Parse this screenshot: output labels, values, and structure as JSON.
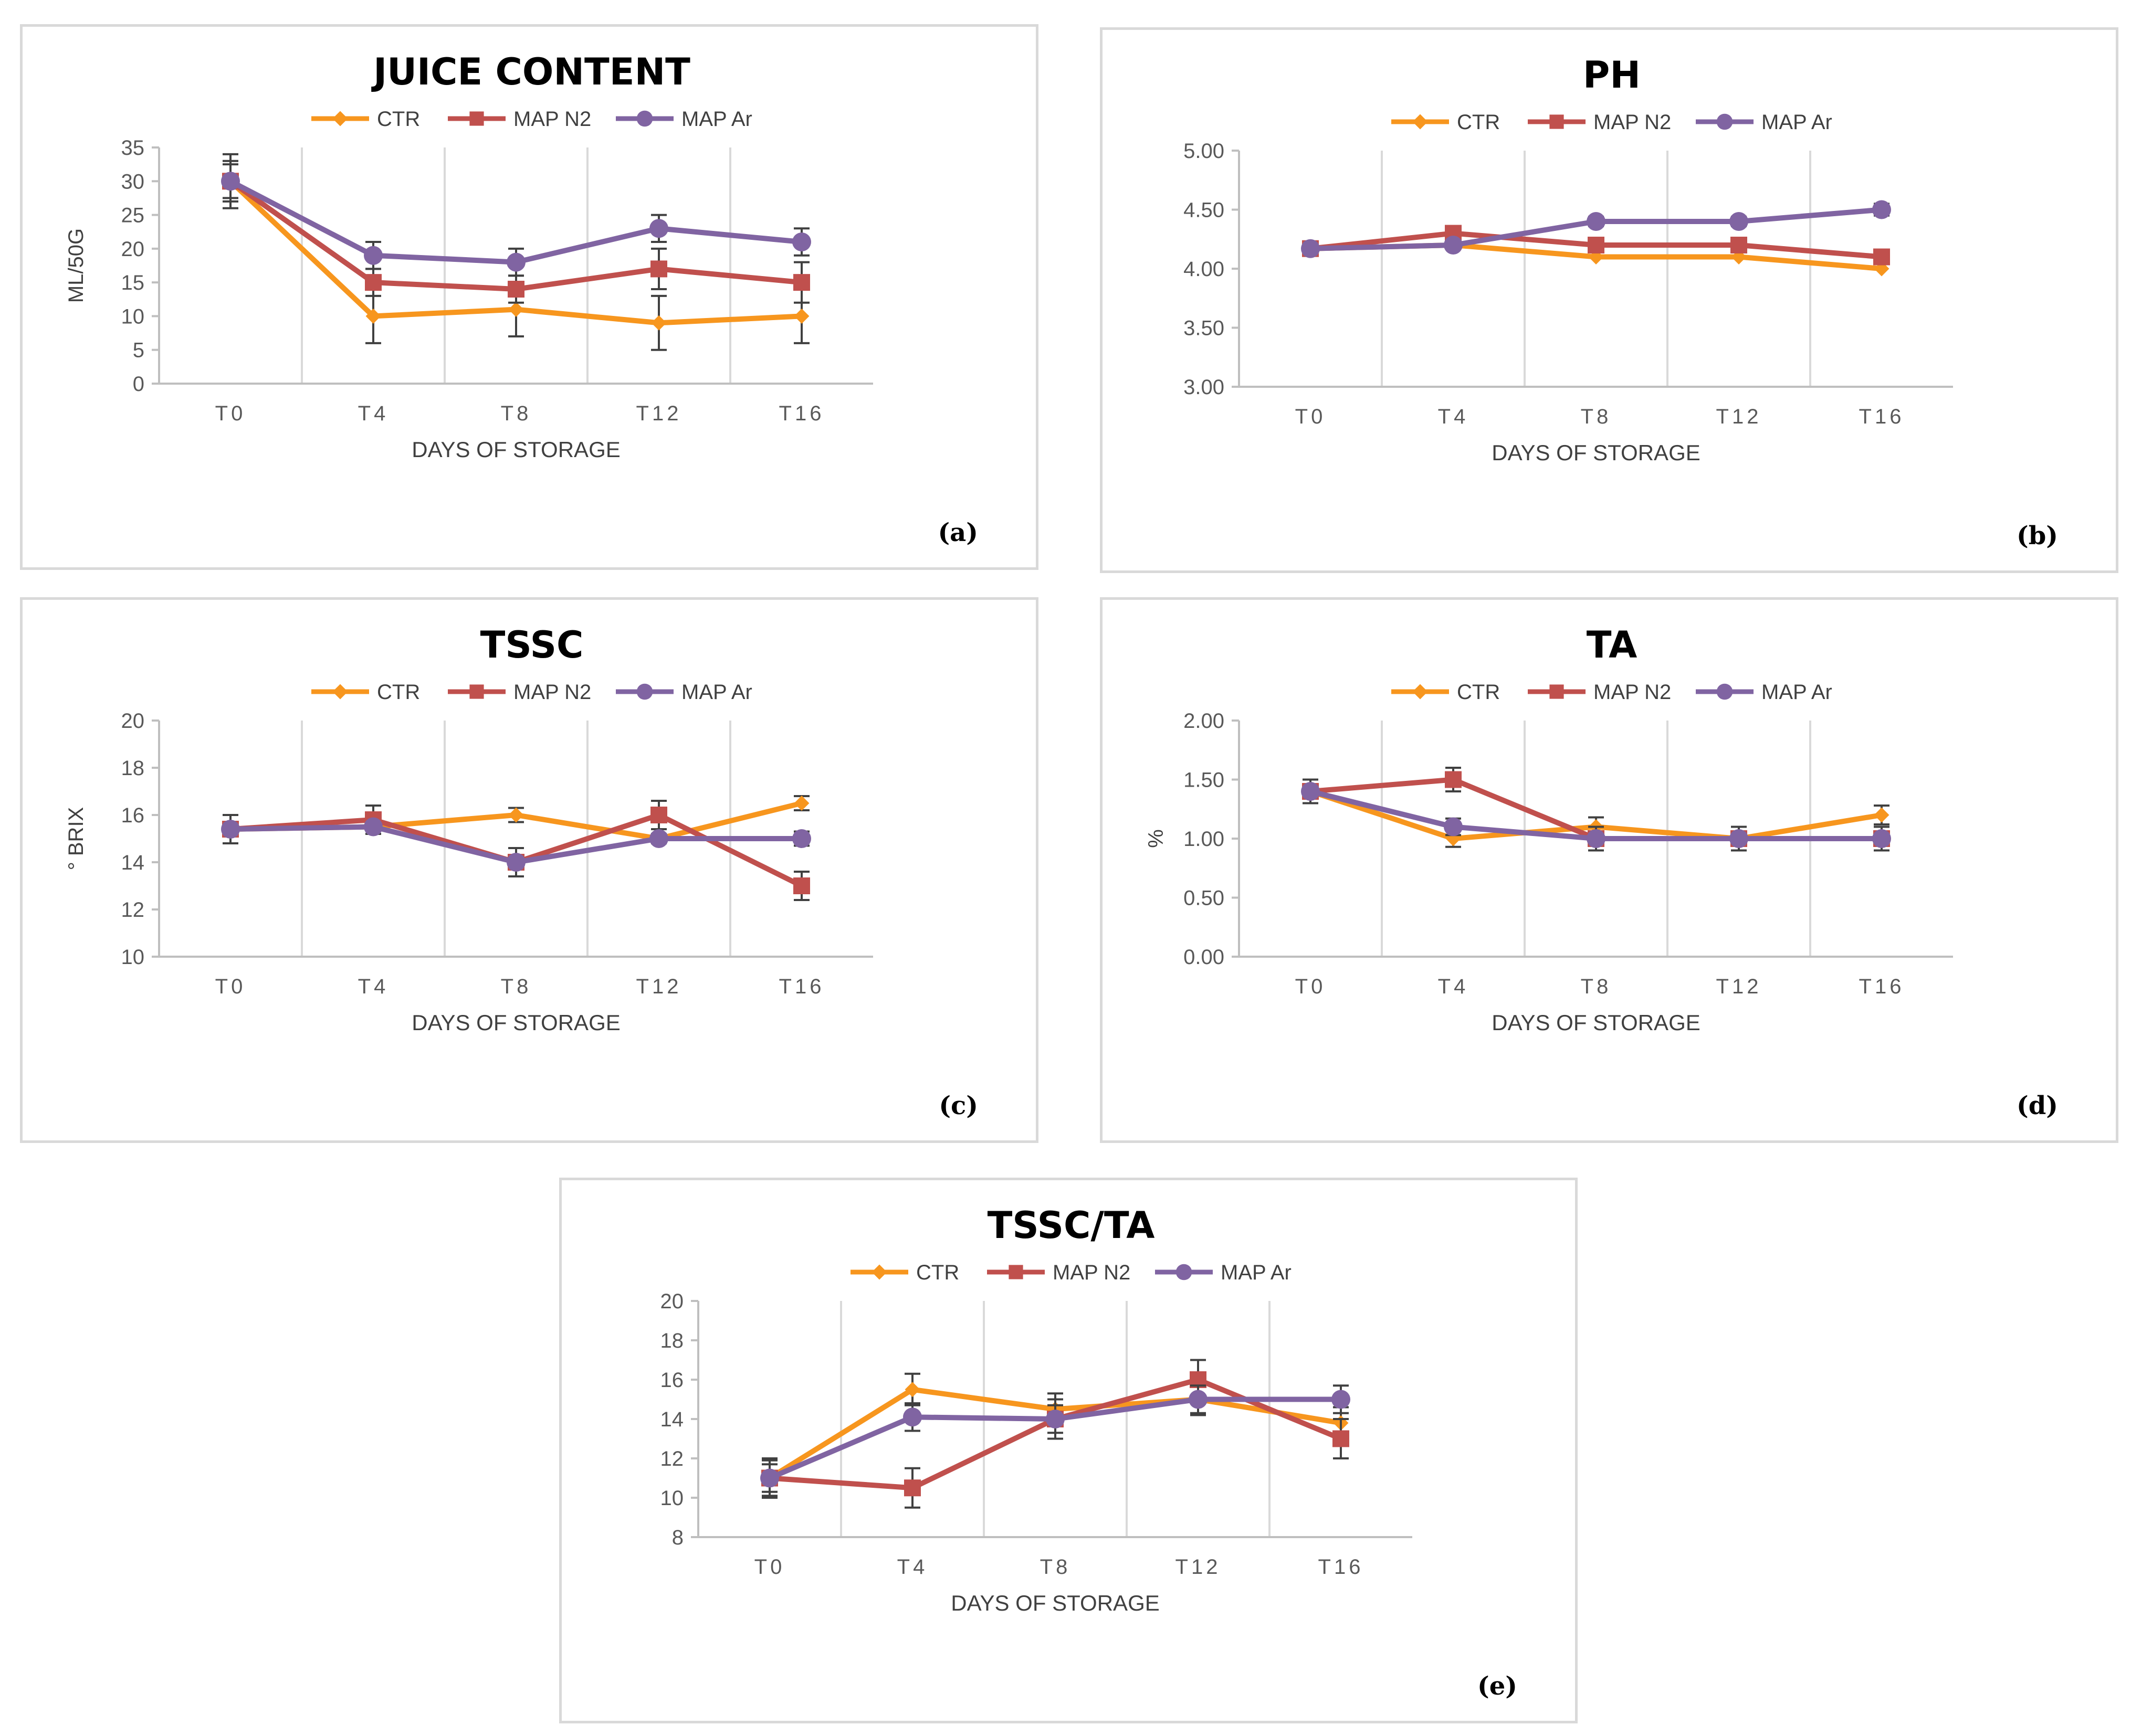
{
  "colors": {
    "CTR": "#F7961E",
    "MAP N2": "#C0504D",
    "MAP Ar": "#8064A2",
    "errorbar": "#404040",
    "grid": "#d9d9d9"
  },
  "legend": [
    "CTR",
    "MAP N2",
    "MAP Ar"
  ],
  "chart_data": [
    {
      "id": "a",
      "type": "line",
      "title": "JUICE  CONTENT",
      "panel_label": "(a)",
      "xlabel": "DAYS OF STORAGE",
      "ylabel": "ML/50G",
      "categories": [
        "T0",
        "T4",
        "T8",
        "T12",
        "T16"
      ],
      "ylim": [
        0,
        35
      ],
      "yticks": [
        "0",
        "5",
        "10",
        "15",
        "20",
        "25",
        "30",
        "35"
      ],
      "series": [
        {
          "name": "CTR",
          "marker": "diamond",
          "values": [
            30,
            10,
            11,
            9,
            10
          ],
          "errors": [
            4,
            4,
            4,
            4,
            4
          ]
        },
        {
          "name": "MAP N2",
          "marker": "square",
          "values": [
            30,
            15,
            14,
            17,
            15
          ],
          "errors": [
            3,
            2,
            2,
            3,
            3
          ]
        },
        {
          "name": "MAP Ar",
          "marker": "circle",
          "values": [
            30,
            19,
            18,
            23,
            21
          ],
          "errors": [
            2.5,
            2,
            2,
            2,
            2
          ]
        }
      ]
    },
    {
      "id": "b",
      "type": "line",
      "title": "PH",
      "panel_label": "(b)",
      "xlabel": "DAYS OF STORAGE",
      "ylabel": "",
      "categories": [
        "T0",
        "T4",
        "T8",
        "T12",
        "T16"
      ],
      "ylim": [
        3,
        5
      ],
      "yticks": [
        "3.00",
        "3.50",
        "4.00",
        "4.50",
        "5.00"
      ],
      "series": [
        {
          "name": "CTR",
          "marker": "diamond",
          "values": [
            4.17,
            4.2,
            4.1,
            4.1,
            4.0
          ],
          "errors": [
            0,
            0,
            0,
            0,
            0
          ]
        },
        {
          "name": "MAP N2",
          "marker": "square",
          "values": [
            4.17,
            4.3,
            4.2,
            4.2,
            4.1
          ],
          "errors": [
            0.03,
            0.03,
            0.03,
            0.03,
            0.03
          ]
        },
        {
          "name": "MAP Ar",
          "marker": "circle",
          "values": [
            4.17,
            4.2,
            4.4,
            4.4,
            4.5
          ],
          "errors": [
            0.03,
            0.03,
            0.04,
            0.04,
            0.05
          ]
        }
      ]
    },
    {
      "id": "c",
      "type": "line",
      "title": "TSSC",
      "panel_label": "(c)",
      "xlabel": "DAYS OF STORAGE",
      "ylabel": "° BRIX",
      "categories": [
        "T0",
        "T4",
        "T8",
        "T12",
        "T16"
      ],
      "ylim": [
        10,
        20
      ],
      "yticks": [
        "10",
        "12",
        "14",
        "16",
        "18",
        "20"
      ],
      "series": [
        {
          "name": "CTR",
          "marker": "diamond",
          "values": [
            15.4,
            15.5,
            16.0,
            15.0,
            16.5
          ],
          "errors": [
            0,
            0,
            0.3,
            0,
            0.3
          ]
        },
        {
          "name": "MAP N2",
          "marker": "square",
          "values": [
            15.4,
            15.8,
            14.0,
            16.0,
            13.0
          ],
          "errors": [
            0.6,
            0.6,
            0.6,
            0.6,
            0.6
          ]
        },
        {
          "name": "MAP Ar",
          "marker": "circle",
          "values": [
            15.4,
            15.5,
            14.0,
            15.0,
            15.0
          ],
          "errors": [
            0,
            0,
            0,
            0.2,
            0.3
          ]
        }
      ]
    },
    {
      "id": "d",
      "type": "line",
      "title": "TA",
      "panel_label": "(d)",
      "xlabel": "DAYS OF STORAGE",
      "ylabel": "%",
      "categories": [
        "T0",
        "T4",
        "T8",
        "T12",
        "T16"
      ],
      "ylim": [
        0,
        2
      ],
      "yticks": [
        "0.00",
        "0.50",
        "1.00",
        "1.50",
        "2.00"
      ],
      "series": [
        {
          "name": "CTR",
          "marker": "diamond",
          "values": [
            1.4,
            1.0,
            1.1,
            1.0,
            1.2
          ],
          "errors": [
            0.1,
            0.07,
            0.08,
            0.1,
            0.08
          ]
        },
        {
          "name": "MAP N2",
          "marker": "square",
          "values": [
            1.4,
            1.5,
            1.0,
            1.0,
            1.0
          ],
          "errors": [
            0.1,
            0.1,
            0.1,
            0.1,
            0.1
          ]
        },
        {
          "name": "MAP Ar",
          "marker": "circle",
          "values": [
            1.4,
            1.1,
            1.0,
            1.0,
            1.0
          ],
          "errors": [
            0.1,
            0.07,
            0.1,
            0.1,
            0.1
          ]
        }
      ]
    },
    {
      "id": "e",
      "type": "line",
      "title": "TSSC/TA",
      "panel_label": "(e)",
      "xlabel": "DAYS OF STORAGE",
      "ylabel": "",
      "categories": [
        "T0",
        "T4",
        "T8",
        "T12",
        "T16"
      ],
      "ylim": [
        8,
        20
      ],
      "yticks": [
        "8",
        "10",
        "12",
        "14",
        "16",
        "18",
        "20"
      ],
      "series": [
        {
          "name": "CTR",
          "marker": "diamond",
          "values": [
            11.0,
            15.5,
            14.5,
            15.0,
            13.8
          ],
          "errors": [
            0.9,
            0.8,
            0.8,
            0.8,
            0.8
          ]
        },
        {
          "name": "MAP N2",
          "marker": "square",
          "values": [
            11.0,
            10.5,
            14.0,
            16.0,
            13.0
          ],
          "errors": [
            1.0,
            1.0,
            1.0,
            1.0,
            1.0
          ]
        },
        {
          "name": "MAP Ar",
          "marker": "circle",
          "values": [
            11.0,
            14.1,
            14.0,
            15.0,
            15.0
          ],
          "errors": [
            0.7,
            0.7,
            0.7,
            0.7,
            0.7
          ]
        }
      ]
    }
  ]
}
